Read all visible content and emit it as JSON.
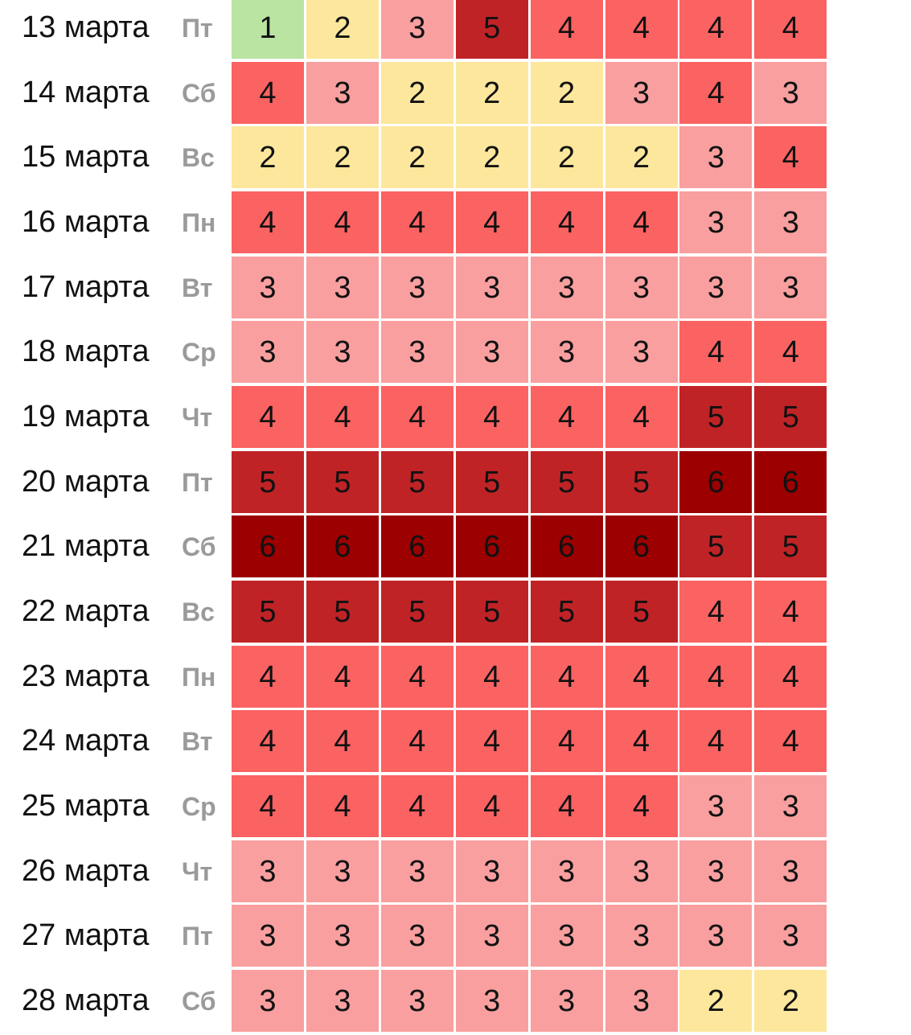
{
  "chart_data": {
    "type": "heatmap",
    "rows": [
      {
        "date": "13 марта",
        "dow": "Пт",
        "values": [
          1,
          2,
          3,
          5,
          4,
          4,
          4,
          4
        ]
      },
      {
        "date": "14 марта",
        "dow": "Сб",
        "values": [
          4,
          3,
          2,
          2,
          2,
          3,
          4,
          3
        ]
      },
      {
        "date": "15 марта",
        "dow": "Вс",
        "values": [
          2,
          2,
          2,
          2,
          2,
          2,
          3,
          4
        ]
      },
      {
        "date": "16 марта",
        "dow": "Пн",
        "values": [
          4,
          4,
          4,
          4,
          4,
          4,
          3,
          3
        ]
      },
      {
        "date": "17 марта",
        "dow": "Вт",
        "values": [
          3,
          3,
          3,
          3,
          3,
          3,
          3,
          3
        ]
      },
      {
        "date": "18 марта",
        "dow": "Ср",
        "values": [
          3,
          3,
          3,
          3,
          3,
          3,
          4,
          4
        ]
      },
      {
        "date": "19 марта",
        "dow": "Чт",
        "values": [
          4,
          4,
          4,
          4,
          4,
          4,
          5,
          5
        ]
      },
      {
        "date": "20 марта",
        "dow": "Пт",
        "values": [
          5,
          5,
          5,
          5,
          5,
          5,
          6,
          6
        ]
      },
      {
        "date": "21 марта",
        "dow": "Сб",
        "values": [
          6,
          6,
          6,
          6,
          6,
          6,
          5,
          5
        ]
      },
      {
        "date": "22 марта",
        "dow": "Вс",
        "values": [
          5,
          5,
          5,
          5,
          5,
          5,
          4,
          4
        ]
      },
      {
        "date": "23 марта",
        "dow": "Пн",
        "values": [
          4,
          4,
          4,
          4,
          4,
          4,
          4,
          4
        ]
      },
      {
        "date": "24 марта",
        "dow": "Вт",
        "values": [
          4,
          4,
          4,
          4,
          4,
          4,
          4,
          4
        ]
      },
      {
        "date": "25 марта",
        "dow": "Ср",
        "values": [
          4,
          4,
          4,
          4,
          4,
          4,
          3,
          3
        ]
      },
      {
        "date": "26 марта",
        "dow": "Чт",
        "values": [
          3,
          3,
          3,
          3,
          3,
          3,
          3,
          3
        ]
      },
      {
        "date": "27 марта",
        "dow": "Пт",
        "values": [
          3,
          3,
          3,
          3,
          3,
          3,
          3,
          3
        ]
      },
      {
        "date": "28 марта",
        "dow": "Сб",
        "values": [
          3,
          3,
          3,
          3,
          3,
          3,
          2,
          2
        ]
      }
    ],
    "color_scale": {
      "1": "#b9e4a2",
      "2": "#fce79c",
      "3": "#f99f9f",
      "4": "#fb6262",
      "5": "#c02326",
      "6": "#9c0000"
    }
  }
}
